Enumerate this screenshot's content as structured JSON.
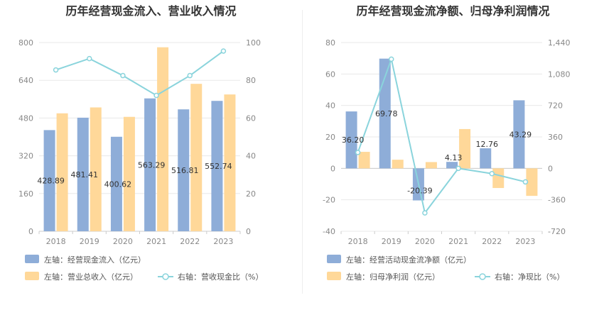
{
  "colors": {
    "blue": "#8EADD8",
    "orange": "#FFD899",
    "teal": "#8AD4DC",
    "grid": "#E8E8E8",
    "axis": "#CCCCCC"
  },
  "left": {
    "title": "历年经营现金流入、营业收入情况",
    "legend": [
      "左轴：经营现金流入（亿元）",
      "左轴：营业总收入（亿元）",
      "右轴：营收现金比（%）"
    ],
    "chart_data": {
      "type": "bar",
      "categories": [
        "2018",
        "2019",
        "2020",
        "2021",
        "2022",
        "2023"
      ],
      "series": [
        {
          "name": "左轴：经营现金流入（亿元）",
          "axis": "left",
          "values": [
            428.89,
            481.41,
            400.62,
            563.29,
            516.81,
            552.74
          ],
          "labels": [
            "428.89",
            "481.41",
            "400.62",
            "563.29",
            "516.81",
            "552.74"
          ]
        },
        {
          "name": "左轴：营业总收入（亿元）",
          "axis": "left",
          "values": [
            500,
            525,
            485,
            780,
            625,
            580
          ]
        },
        {
          "name": "右轴：营收现金比（%）",
          "axis": "right",
          "type": "line",
          "values": [
            85.5,
            91.5,
            82.5,
            72,
            82.5,
            95.5
          ]
        }
      ],
      "left_axis": {
        "ylim": [
          0,
          800
        ],
        "ticks": [
          "0",
          "160",
          "320",
          "480",
          "640",
          "800"
        ]
      },
      "right_axis": {
        "ylim": [
          0,
          100
        ],
        "ticks": [
          "0",
          "20",
          "40",
          "60",
          "80",
          "100"
        ]
      }
    }
  },
  "right": {
    "title": "历年经营现金流净额、归母净利润情况",
    "legend": [
      "左轴：经营活动现金流净额（亿元）",
      "左轴：归母净利润（亿元）",
      "右轴：净现比（%）"
    ],
    "chart_data": {
      "type": "bar",
      "categories": [
        "2018",
        "2019",
        "2020",
        "2021",
        "2022",
        "2023"
      ],
      "series": [
        {
          "name": "左轴：经营活动现金流净额（亿元）",
          "axis": "left",
          "values": [
            36.2,
            69.78,
            -20.39,
            4.13,
            12.76,
            43.29
          ],
          "labels": [
            "36.20",
            "69.78",
            "-20.39",
            "4.13",
            "12.76",
            "43.29"
          ]
        },
        {
          "name": "左轴：归母净利润（亿元）",
          "axis": "left",
          "values": [
            10.5,
            5.5,
            4,
            25,
            -12.5,
            -17.5
          ]
        },
        {
          "name": "右轴：净现比（%）",
          "axis": "right",
          "type": "line",
          "values": [
            182,
            1250,
            -510,
            0,
            -60,
            -155
          ]
        }
      ],
      "left_axis": {
        "ylim": [
          -40,
          80
        ],
        "ticks": [
          "-40",
          "-20",
          "0",
          "20",
          "40",
          "60",
          "80"
        ]
      },
      "right_axis": {
        "ylim": [
          -720,
          1440
        ],
        "ticks": [
          "-720",
          "-360",
          "0",
          "360",
          "720",
          "1,080",
          "1,440"
        ]
      }
    }
  }
}
